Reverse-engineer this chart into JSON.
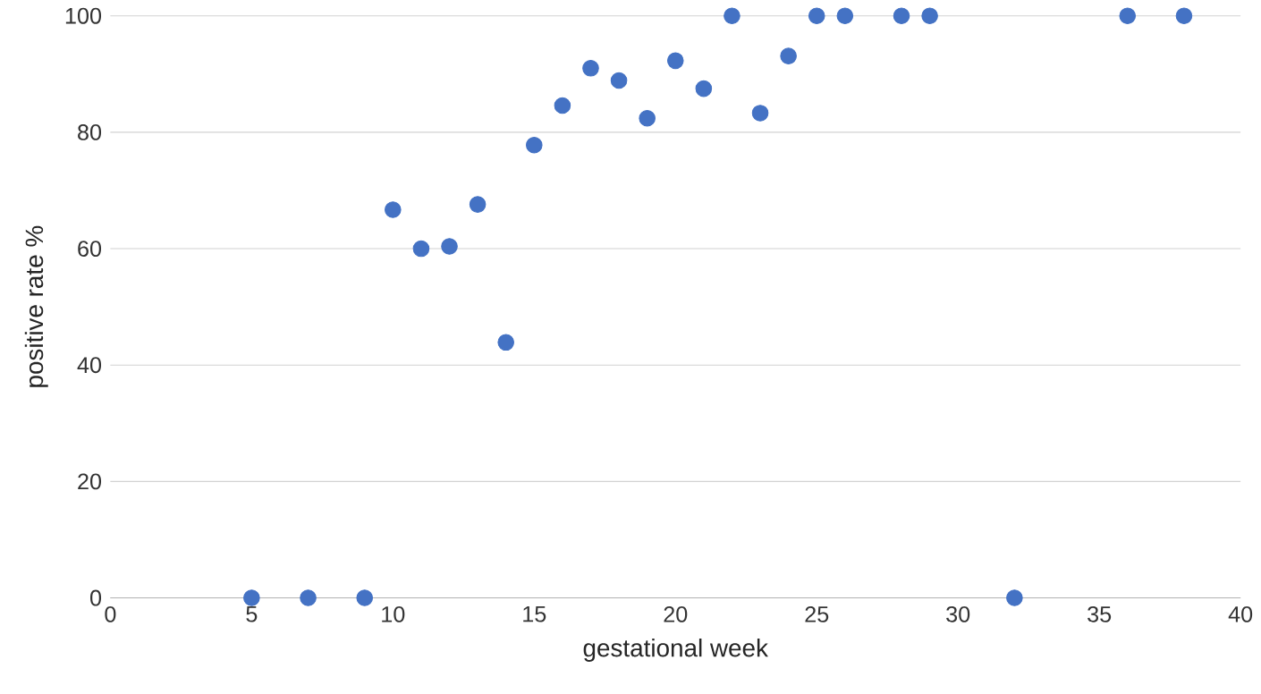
{
  "chart_data": {
    "type": "scatter",
    "xlabel": "gestational week",
    "ylabel": "positive rate  %",
    "x": [
      5,
      7,
      9,
      10,
      11,
      12,
      13,
      14,
      15,
      16,
      17,
      18,
      19,
      20,
      21,
      22,
      23,
      24,
      25,
      26,
      28,
      29,
      32,
      36,
      38
    ],
    "values": [
      0,
      0,
      0,
      66.7,
      60,
      60.4,
      67.6,
      43.9,
      77.8,
      84.6,
      91,
      88.9,
      82.4,
      92.3,
      87.5,
      100,
      83.3,
      93.1,
      100,
      100,
      100,
      100,
      0,
      100,
      100
    ],
    "color": "#4472c4",
    "marker": "circle",
    "xlim": [
      0,
      40
    ],
    "ylim": [
      0,
      100
    ],
    "xticks": [
      0,
      5,
      10,
      15,
      20,
      25,
      30,
      35,
      40
    ],
    "yticks": [
      0,
      20,
      40,
      60,
      80,
      100
    ],
    "grid": "y"
  }
}
